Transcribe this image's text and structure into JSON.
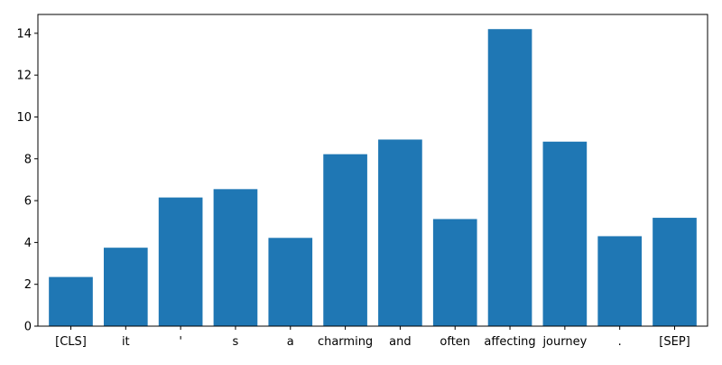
{
  "chart_data": {
    "type": "bar",
    "categories": [
      "[CLS]",
      "it",
      "'",
      "s",
      "a",
      "charming",
      "and",
      "often",
      "affecting",
      "journey",
      ".",
      "[SEP]"
    ],
    "values": [
      2.35,
      3.75,
      6.15,
      6.55,
      4.22,
      8.22,
      8.92,
      5.12,
      14.2,
      8.82,
      4.3,
      5.18
    ],
    "title": "",
    "xlabel": "",
    "ylabel": "",
    "ylim": [
      0,
      14.9
    ],
    "yticks": [
      0,
      2,
      4,
      6,
      8,
      10,
      12,
      14
    ],
    "bar_color": "#1f77b4",
    "grid": false,
    "legend": "none"
  }
}
